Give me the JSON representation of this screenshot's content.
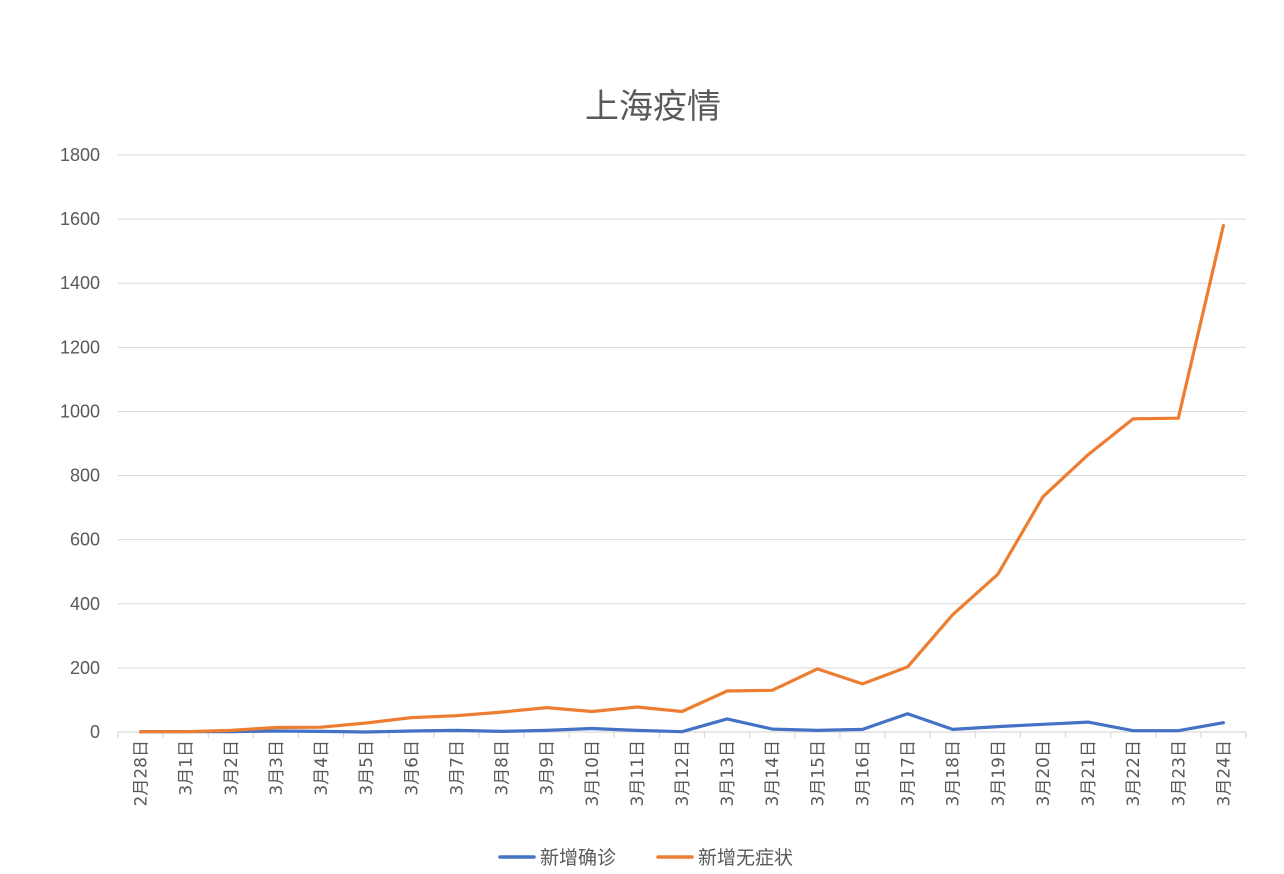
{
  "chart_data": {
    "type": "line",
    "title": "上海疫情",
    "xlabel": "",
    "ylabel": "",
    "ylim": [
      0,
      1800
    ],
    "ytick_step": 200,
    "grid": true,
    "legend_position": "bottom",
    "categories": [
      "2月28日",
      "3月1日",
      "3月2日",
      "3月3日",
      "3月4日",
      "3月5日",
      "3月6日",
      "3月7日",
      "3月8日",
      "3月9日",
      "3月10日",
      "3月11日",
      "3月12日",
      "3月13日",
      "3月14日",
      "3月15日",
      "3月16日",
      "3月17日",
      "3月18日",
      "3月19日",
      "3月20日",
      "3月21日",
      "3月22日",
      "3月23日",
      "3月24日"
    ],
    "series": [
      {
        "name": "新增确诊",
        "color": "#4472C4",
        "values": [
          1,
          1,
          1,
          3,
          2,
          0,
          3,
          5,
          2,
          5,
          11,
          5,
          1,
          41,
          9,
          5,
          8,
          57,
          8,
          17,
          24,
          31,
          4,
          4,
          29
        ]
      },
      {
        "name": "新增无症状",
        "color": "#ED7D31",
        "values": [
          1,
          1,
          5,
          14,
          15,
          28,
          45,
          51,
          62,
          76,
          64,
          78,
          64,
          128,
          130,
          197,
          150,
          203,
          366,
          492,
          734,
          865,
          977,
          979,
          1580
        ]
      }
    ]
  }
}
